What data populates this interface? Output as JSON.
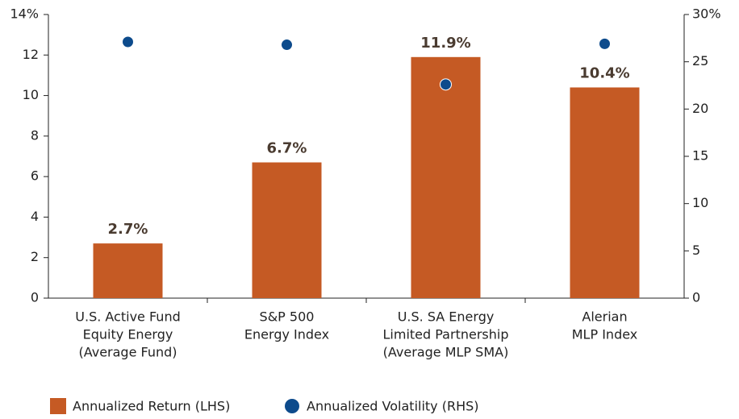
{
  "chart_data": {
    "type": "bar",
    "categories": [
      [
        "U.S. Active Fund",
        "Equity Energy",
        "(Average Fund)"
      ],
      [
        "S&P 500",
        "Energy Index"
      ],
      [
        "U.S. SA Energy",
        "Limited Partnership",
        "(Average MLP SMA)"
      ],
      [
        "Alerian",
        "MLP Index"
      ]
    ],
    "series": [
      {
        "name": "Annualized Return (LHS)",
        "type": "bar",
        "color": "#c55a24",
        "values": [
          2.7,
          6.7,
          11.9,
          10.4
        ],
        "value_labels": [
          "2.7%",
          "6.7%",
          "11.9%",
          "10.4%"
        ]
      },
      {
        "name": "Annualized Volatility (RHS)",
        "type": "scatter",
        "axis": "y2",
        "color": "#0d4b8c",
        "values": [
          27.1,
          26.8,
          22.6,
          26.9
        ]
      }
    ],
    "ylim": [
      0,
      14
    ],
    "yticks": [
      0,
      2,
      4,
      6,
      8,
      10,
      12,
      {
        "value": 14,
        "label": "14%"
      }
    ],
    "y2lim": [
      0,
      30
    ],
    "y2ticks": [
      0,
      5,
      10,
      15,
      20,
      25,
      {
        "value": 30,
        "label": "30%"
      }
    ],
    "legend": "bottom-left"
  }
}
